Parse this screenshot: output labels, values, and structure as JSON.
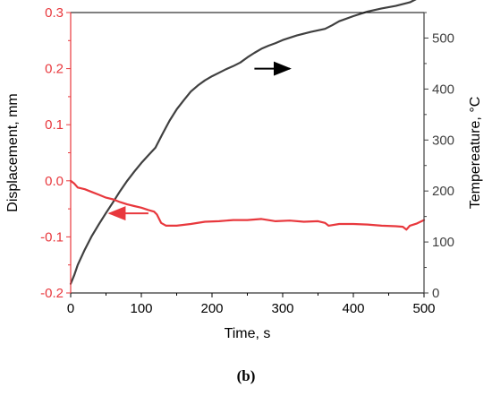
{
  "caption": "(b)",
  "colors": {
    "left": "#e8383d",
    "right": "#404040",
    "axis": "#000000",
    "arrow_right": "#000000"
  },
  "chart_data": {
    "type": "line",
    "xlabel": "Time, s",
    "ylabel_left": "Displacement, mm",
    "ylabel_right": "Tempereature, °C",
    "xlim": [
      0,
      500
    ],
    "ylim_left": [
      -0.2,
      0.3
    ],
    "ylim_right": [
      0,
      550
    ],
    "grid": false,
    "xticks": [
      "0",
      "100",
      "200",
      "300",
      "400",
      "500"
    ],
    "yticks_left": [
      "-0.2",
      "-0.1",
      "0.0",
      "0.1",
      "0.2",
      "0.3"
    ],
    "yticks_right": [
      "0",
      "100",
      "200",
      "300",
      "400",
      "500"
    ],
    "series": [
      {
        "axis": "right",
        "color": "#404040",
        "x": [
          0,
          5,
          10,
          20,
          30,
          40,
          50,
          60,
          70,
          80,
          90,
          100,
          110,
          120,
          130,
          140,
          150,
          160,
          170,
          180,
          190,
          200,
          210,
          220,
          230,
          240,
          250,
          260,
          270,
          280,
          290,
          300,
          320,
          340,
          360,
          370,
          380,
          400,
          420,
          440,
          460,
          480,
          490,
          500
        ],
        "y": [
          18,
          35,
          55,
          85,
          112,
          135,
          157,
          178,
          200,
          220,
          238,
          255,
          270,
          285,
          312,
          338,
          360,
          378,
          395,
          407,
          417,
          425,
          432,
          439,
          445,
          452,
          462,
          471,
          479,
          485,
          490,
          496,
          505,
          512,
          518,
          525,
          533,
          543,
          552,
          558,
          563,
          570,
          577,
          580
        ]
      },
      {
        "axis": "left",
        "color": "#e8383d",
        "x": [
          0,
          5,
          10,
          20,
          30,
          40,
          50,
          60,
          70,
          80,
          90,
          100,
          110,
          118,
          122,
          128,
          135,
          150,
          170,
          190,
          210,
          230,
          250,
          270,
          290,
          310,
          330,
          350,
          360,
          365,
          380,
          400,
          420,
          440,
          460,
          470,
          475,
          480,
          490,
          500
        ],
        "y": [
          0.0,
          -0.005,
          -0.012,
          -0.015,
          -0.02,
          -0.025,
          -0.03,
          -0.033,
          -0.038,
          -0.042,
          -0.045,
          -0.048,
          -0.052,
          -0.055,
          -0.06,
          -0.075,
          -0.08,
          -0.08,
          -0.077,
          -0.073,
          -0.072,
          -0.07,
          -0.07,
          -0.068,
          -0.072,
          -0.071,
          -0.073,
          -0.072,
          -0.075,
          -0.08,
          -0.077,
          -0.077,
          -0.078,
          -0.08,
          -0.081,
          -0.082,
          -0.087,
          -0.08,
          -0.076,
          -0.07
        ]
      }
    ],
    "annotations": [
      {
        "type": "arrow",
        "direction": "right",
        "color": "#000000",
        "x_from": 260,
        "x_to": 310,
        "y": 0.2,
        "axis": "left"
      },
      {
        "type": "arrow",
        "direction": "left",
        "color": "#e8383d",
        "x_from": 110,
        "x_to": 55,
        "y": -0.058,
        "axis": "left"
      }
    ]
  }
}
